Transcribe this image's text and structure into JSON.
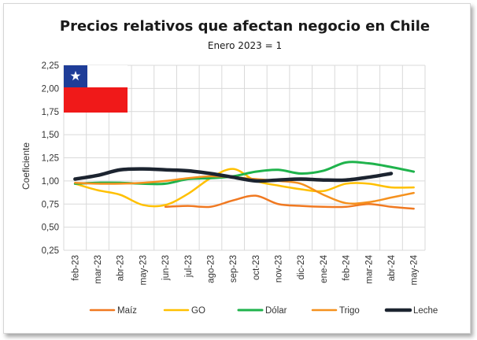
{
  "chart_data": {
    "type": "line",
    "title": "Precios relativos que afectan negocio en Chile",
    "subtitle": "Enero 2023 = 1",
    "ylabel": "Coeficiente",
    "xlabel": "",
    "ylim": [
      0.25,
      2.25
    ],
    "yticks": [
      0.25,
      0.5,
      0.75,
      1.0,
      1.25,
      1.5,
      1.75,
      2.0,
      2.25
    ],
    "ytick_labels": [
      "0,25",
      "0,50",
      "0,75",
      "1,00",
      "1,25",
      "1,50",
      "1,75",
      "2,00",
      "2,25"
    ],
    "categories": [
      "feb-23",
      "mar-23",
      "abr-23",
      "may-23",
      "jun-23",
      "jul-23",
      "ago-23",
      "sep-23",
      "oct-23",
      "nov-23",
      "dic-23",
      "ene-24",
      "feb-24",
      "mar-24",
      "abr-24",
      "may-24"
    ],
    "grid": true,
    "legend_position": "bottom",
    "flag": "chile-flag",
    "series": [
      {
        "name": "Maíz",
        "color": "#f07921",
        "width": 2.5,
        "values": [
          null,
          null,
          null,
          null,
          0.72,
          0.73,
          0.72,
          0.79,
          0.84,
          0.75,
          0.73,
          0.72,
          0.72,
          0.75,
          0.72,
          0.7
        ]
      },
      {
        "name": "GO",
        "color": "#ffc000",
        "width": 2.5,
        "values": [
          0.97,
          0.9,
          0.85,
          0.74,
          0.74,
          0.86,
          1.03,
          1.13,
          1.0,
          0.95,
          0.91,
          0.89,
          0.97,
          0.97,
          0.93,
          0.93
        ]
      },
      {
        "name": "Dólar",
        "color": "#1fb34c",
        "width": 3,
        "values": [
          0.97,
          0.98,
          0.98,
          0.97,
          0.97,
          1.02,
          1.03,
          1.05,
          1.1,
          1.12,
          1.08,
          1.11,
          1.2,
          1.19,
          1.15,
          1.1
        ]
      },
      {
        "name": "Trigo",
        "color": "#f5911e",
        "width": 2.5,
        "values": [
          0.98,
          0.97,
          0.97,
          0.98,
          1.0,
          1.03,
          1.05,
          1.04,
          1.02,
          1.0,
          0.97,
          0.85,
          0.76,
          0.77,
          0.82,
          0.87
        ]
      },
      {
        "name": "Leche",
        "color": "#1c2430",
        "width": 4.5,
        "values": [
          1.02,
          1.06,
          1.12,
          1.13,
          1.12,
          1.11,
          1.08,
          1.04,
          1.0,
          1.01,
          1.02,
          1.01,
          1.01,
          1.04,
          1.08,
          null
        ]
      }
    ]
  }
}
